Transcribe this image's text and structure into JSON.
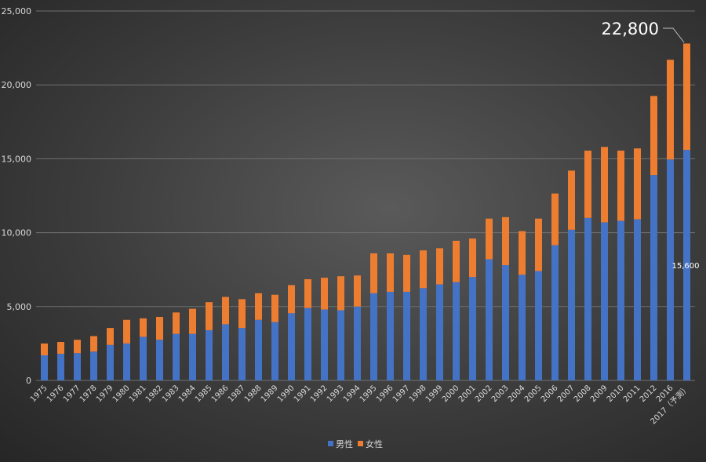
{
  "chart_data": {
    "type": "bar",
    "stacked": true,
    "categories": [
      "1975",
      "1976",
      "1977",
      "1978",
      "1979",
      "1980",
      "1981",
      "1982",
      "1983",
      "1984",
      "1985",
      "1986",
      "1987",
      "1988",
      "1989",
      "1990",
      "1991",
      "1992",
      "1993",
      "1994",
      "1995",
      "1996",
      "1997",
      "1998",
      "1999",
      "2000",
      "2001",
      "2002",
      "2003",
      "2004",
      "2005",
      "2006",
      "2007",
      "2008",
      "2009",
      "2010",
      "2011",
      "2012",
      "2016",
      "2017（予測）"
    ],
    "series": [
      {
        "name": "男性",
        "color": "#4472c4",
        "values": [
          1700,
          1800,
          1850,
          1950,
          2400,
          2500,
          2950,
          2750,
          3150,
          3150,
          3400,
          3800,
          3550,
          4100,
          3950,
          4550,
          4900,
          4800,
          4750,
          5000,
          5900,
          6000,
          6000,
          6250,
          6500,
          6650,
          7000,
          8200,
          7800,
          7150,
          7400,
          9150,
          10200,
          11000,
          10700,
          10800,
          10900,
          13900,
          14950,
          15600
        ]
      },
      {
        "name": "女性",
        "color": "#ed7d31",
        "values": [
          800,
          800,
          900,
          1050,
          1150,
          1600,
          1250,
          1550,
          1450,
          1700,
          1900,
          1850,
          1950,
          1800,
          1850,
          1900,
          1950,
          2150,
          2300,
          2100,
          2700,
          2600,
          2500,
          2550,
          2450,
          2800,
          2600,
          2750,
          3250,
          2950,
          3550,
          3500,
          4000,
          4550,
          5100,
          4750,
          4800,
          5350,
          6750,
          7200
        ]
      }
    ],
    "ylim": [
      0,
      25000
    ],
    "yticks": [
      "0",
      "5,000",
      "10,000",
      "15,000",
      "20,000",
      "25,000"
    ],
    "grid": true,
    "legend_position": "bottom",
    "annotations": {
      "total_last": "22,800",
      "male_last": "15,600"
    }
  }
}
